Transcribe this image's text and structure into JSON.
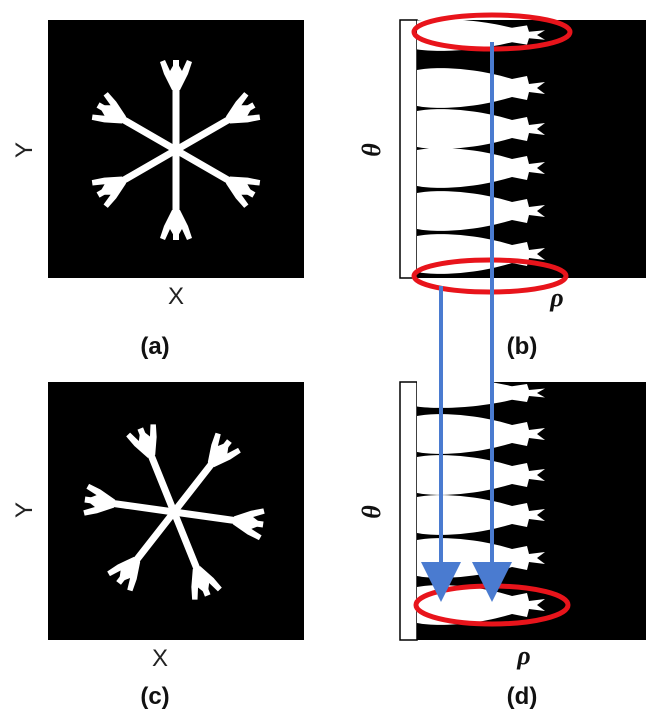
{
  "panels": {
    "a": {
      "caption": "(a)",
      "x_label": "X",
      "y_label": "Y"
    },
    "b": {
      "caption": "(b)",
      "theta_label": "θ",
      "rho_label": "ρ"
    },
    "c": {
      "caption": "(c)",
      "x_label": "X",
      "y_label": "Y"
    },
    "d": {
      "caption": "(d)",
      "theta_label": "θ",
      "rho_label": "ρ"
    }
  },
  "colors": {
    "image_bg": "#000000",
    "flake": "#ffffff",
    "highlight": "#e8141b",
    "arrow": "#4a7bd0"
  },
  "icons": {
    "snowflake": "snowflake-shape",
    "arrow": "down-arrow"
  }
}
